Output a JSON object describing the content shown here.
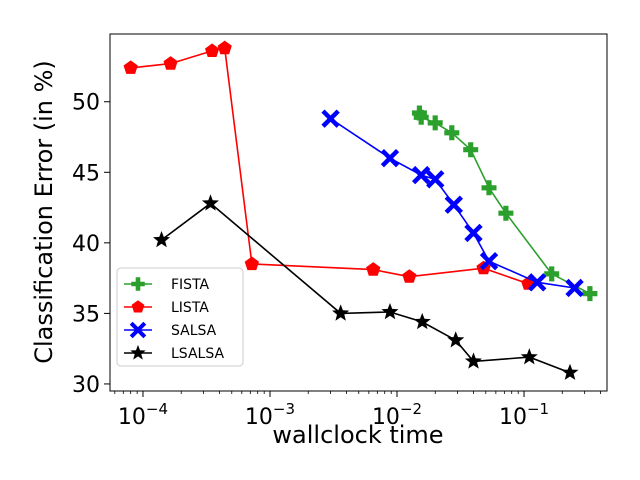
{
  "chart_data": {
    "type": "line",
    "title": "",
    "xlabel": "wallclock time",
    "ylabel": "Classification Error (in %)",
    "xscale": "log",
    "xlim": [
      5.5e-05,
      0.45
    ],
    "ylim": [
      29.5,
      54.8
    ],
    "x_ticks": [
      {
        "value": 0.0001,
        "base": "10",
        "exp": "−4"
      },
      {
        "value": 0.001,
        "base": "10",
        "exp": "−3"
      },
      {
        "value": 0.01,
        "base": "10",
        "exp": "−2"
      },
      {
        "value": 0.1,
        "base": "10",
        "exp": "−1"
      }
    ],
    "y_ticks": [
      {
        "value": 30,
        "label": "30"
      },
      {
        "value": 35,
        "label": "35"
      },
      {
        "value": 40,
        "label": "40"
      },
      {
        "value": 45,
        "label": "45"
      },
      {
        "value": 50,
        "label": "50"
      }
    ],
    "legend_position": "lower-left",
    "series": [
      {
        "name": "FISTA",
        "color": "#2ca02c",
        "marker": "plus",
        "points": [
          [
            0.015,
            49.2
          ],
          [
            0.0155,
            48.9
          ],
          [
            0.02,
            48.5
          ],
          [
            0.027,
            47.8
          ],
          [
            0.038,
            46.6
          ],
          [
            0.053,
            43.9
          ],
          [
            0.072,
            42.1
          ],
          [
            0.165,
            37.8
          ],
          [
            0.33,
            36.4
          ]
        ]
      },
      {
        "name": "LISTA",
        "color": "#ff0000",
        "marker": "pentagon",
        "points": [
          [
            8e-05,
            52.4
          ],
          [
            0.000165,
            52.7
          ],
          [
            0.00035,
            53.6
          ],
          [
            0.00044,
            53.8
          ],
          [
            0.00072,
            38.5
          ],
          [
            0.0065,
            38.1
          ],
          [
            0.0125,
            37.6
          ],
          [
            0.048,
            38.2
          ],
          [
            0.108,
            37.1
          ]
        ]
      },
      {
        "name": "SALSA",
        "color": "#0000ff",
        "marker": "x",
        "points": [
          [
            0.003,
            48.8
          ],
          [
            0.0088,
            46.0
          ],
          [
            0.0155,
            44.8
          ],
          [
            0.02,
            44.5
          ],
          [
            0.028,
            42.7
          ],
          [
            0.04,
            40.7
          ],
          [
            0.053,
            38.7
          ],
          [
            0.127,
            37.2
          ],
          [
            0.25,
            36.8
          ]
        ]
      },
      {
        "name": "LSALSA",
        "color": "#000000",
        "marker": "star",
        "points": [
          [
            0.00014,
            40.2
          ],
          [
            0.00034,
            42.8
          ],
          [
            0.0036,
            35.0
          ],
          [
            0.0088,
            35.1
          ],
          [
            0.0158,
            34.4
          ],
          [
            0.029,
            33.1
          ],
          [
            0.04,
            31.6
          ],
          [
            0.11,
            31.9
          ],
          [
            0.23,
            30.8
          ]
        ]
      }
    ]
  }
}
